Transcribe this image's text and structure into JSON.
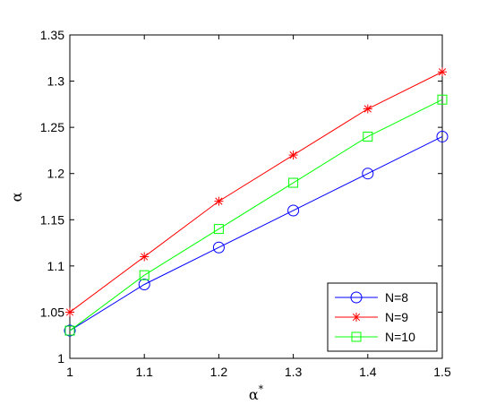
{
  "chart_data": {
    "type": "line",
    "xlabel": "α",
    "xlabel_superscript": "*",
    "ylabel": "α",
    "xlim": [
      1,
      1.5
    ],
    "ylim": [
      1,
      1.35
    ],
    "xticks": [
      "1",
      "1.1",
      "1.2",
      "1.3",
      "1.4",
      "1.5"
    ],
    "yticks": [
      "1",
      "1.05",
      "1.1",
      "1.15",
      "1.2",
      "1.25",
      "1.3",
      "1.35"
    ],
    "grid": false,
    "legend_position": "bottom-right",
    "x": [
      1,
      1.1,
      1.2,
      1.3,
      1.4,
      1.5
    ],
    "series": [
      {
        "name": "N=8",
        "values": [
          1.03,
          1.08,
          1.12,
          1.16,
          1.2,
          1.24
        ],
        "color": "#0000ff",
        "marker": "circle"
      },
      {
        "name": "N=9",
        "values": [
          1.05,
          1.11,
          1.17,
          1.22,
          1.27,
          1.31
        ],
        "color": "#ff0000",
        "marker": "asterisk"
      },
      {
        "name": "N=10",
        "values": [
          1.03,
          1.09,
          1.14,
          1.19,
          1.24,
          1.28
        ],
        "color": "#00ff00",
        "marker": "square"
      }
    ]
  }
}
